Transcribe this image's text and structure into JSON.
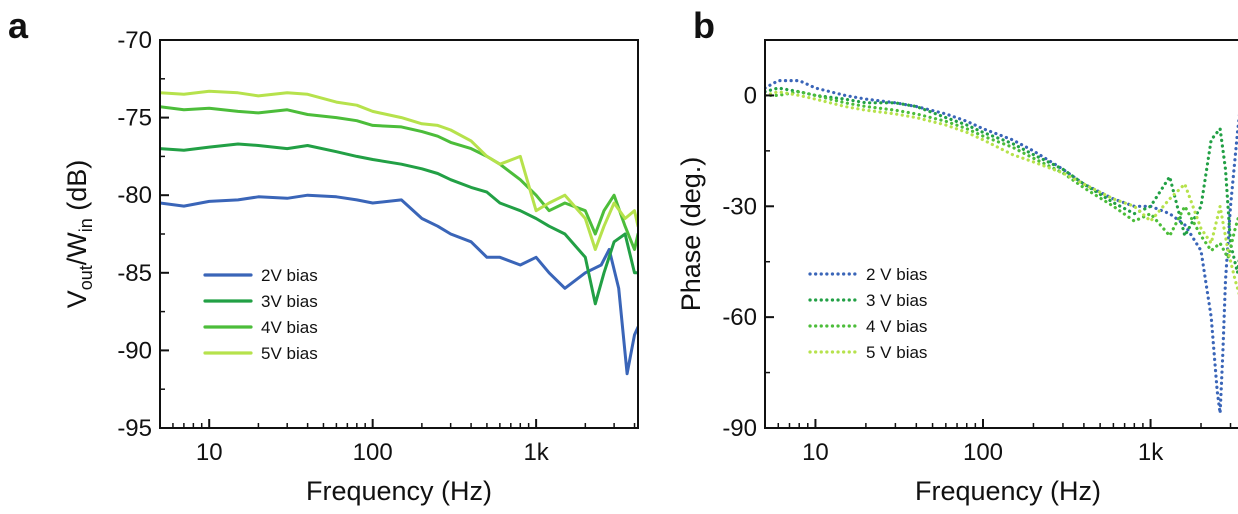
{
  "figure": {
    "panel_a_letter": "a",
    "panel_b_letter": "b"
  },
  "colors": {
    "2V": "#3a65b8",
    "3V": "#22a045",
    "4V": "#4cbd3a",
    "5V": "#b6e24c"
  },
  "chart_data": [
    {
      "panel": "a",
      "type": "line",
      "title": "",
      "xlabel": "Frequency (Hz)",
      "ylabel_main": "V",
      "ylabel_sub1": "out",
      "ylabel_mid": "/W",
      "ylabel_sub2": "in",
      "ylabel_tail": " (dB)",
      "xscale": "log",
      "xlim": [
        5,
        4200
      ],
      "ylim": [
        -95,
        -70
      ],
      "xticks": [
        10,
        100,
        1000
      ],
      "xticklabels": [
        "10",
        "100",
        "1k"
      ],
      "yticks": [
        -95,
        -90,
        -85,
        -80,
        -75,
        -70
      ],
      "yticklabels": [
        "-95",
        "-90",
        "-85",
        "-80",
        "-75",
        "-70"
      ],
      "grid": false,
      "legend_position": "lower-left",
      "line_style": "solid",
      "series": [
        {
          "name": "2V bias",
          "color": "#3a65b8",
          "x": [
            5,
            7,
            10,
            15,
            20,
            30,
            40,
            60,
            80,
            100,
            150,
            200,
            250,
            300,
            400,
            500,
            600,
            800,
            1000,
            1200,
            1500,
            2000,
            2500,
            2800,
            3200,
            3600,
            4000,
            4200
          ],
          "y": [
            -80.5,
            -80.7,
            -80.4,
            -80.3,
            -80.1,
            -80.2,
            -80.0,
            -80.1,
            -80.3,
            -80.5,
            -80.3,
            -81.5,
            -82.0,
            -82.5,
            -83.0,
            -84.0,
            -84.0,
            -84.5,
            -84.0,
            -85.0,
            -86.0,
            -85.0,
            -84.5,
            -83.5,
            -86.0,
            -91.5,
            -89.0,
            -88.5
          ]
        },
        {
          "name": "3V bias",
          "color": "#22a045",
          "x": [
            5,
            7,
            10,
            15,
            20,
            30,
            40,
            60,
            80,
            100,
            150,
            200,
            250,
            300,
            400,
            500,
            600,
            800,
            1000,
            1200,
            1500,
            2000,
            2300,
            2600,
            3000,
            3500,
            4000,
            4200
          ],
          "y": [
            -77.0,
            -77.1,
            -76.9,
            -76.7,
            -76.8,
            -77.0,
            -76.8,
            -77.2,
            -77.5,
            -77.7,
            -78.0,
            -78.3,
            -78.6,
            -79.0,
            -79.5,
            -79.8,
            -80.5,
            -81.0,
            -81.5,
            -82.0,
            -82.5,
            -84.0,
            -87.0,
            -85.0,
            -83.0,
            -82.5,
            -85.0,
            -85.0
          ]
        },
        {
          "name": "4V bias",
          "color": "#4cbd3a",
          "x": [
            5,
            7,
            10,
            15,
            20,
            30,
            40,
            60,
            80,
            100,
            150,
            200,
            250,
            300,
            400,
            500,
            600,
            800,
            1000,
            1200,
            1500,
            2000,
            2300,
            2600,
            3000,
            3500,
            4000,
            4200
          ],
          "y": [
            -74.3,
            -74.5,
            -74.4,
            -74.6,
            -74.7,
            -74.5,
            -74.8,
            -75.0,
            -75.2,
            -75.5,
            -75.6,
            -75.9,
            -76.2,
            -76.6,
            -77.0,
            -77.5,
            -78.0,
            -79.0,
            -80.0,
            -81.0,
            -80.5,
            -81.0,
            -82.5,
            -81.0,
            -80.0,
            -82.0,
            -83.5,
            -82.5
          ]
        },
        {
          "name": "5V bias",
          "color": "#b6e24c",
          "x": [
            5,
            7,
            10,
            15,
            20,
            30,
            40,
            60,
            80,
            100,
            150,
            200,
            250,
            300,
            400,
            500,
            600,
            800,
            1000,
            1200,
            1500,
            2000,
            2300,
            2600,
            3000,
            3500,
            4000,
            4200
          ],
          "y": [
            -73.4,
            -73.5,
            -73.3,
            -73.4,
            -73.6,
            -73.4,
            -73.5,
            -74.0,
            -74.2,
            -74.6,
            -75.0,
            -75.4,
            -75.5,
            -75.8,
            -76.5,
            -77.5,
            -78.0,
            -77.5,
            -81.0,
            -80.5,
            -80.0,
            -81.5,
            -83.5,
            -82.0,
            -80.5,
            -81.5,
            -81.0,
            -82.0
          ]
        }
      ],
      "legend_entries": [
        "2V bias",
        "3V bias",
        "4V bias",
        "5V bias"
      ]
    },
    {
      "panel": "b",
      "type": "line",
      "title": "",
      "xlabel": "Frequency (Hz)",
      "ylabel": "Phase (deg.)",
      "xscale": "log",
      "xlim": [
        5,
        4200
      ],
      "ylim": [
        -90,
        15
      ],
      "xticks": [
        10,
        100,
        1000
      ],
      "xticklabels": [
        "10",
        "100",
        "1k"
      ],
      "yticks": [
        -90,
        -60,
        -30,
        0
      ],
      "yticklabels": [
        "-90",
        "-60",
        "-30",
        "0"
      ],
      "grid": false,
      "legend_position": "lower-left",
      "line_style": "dotted",
      "series": [
        {
          "name": "2 V bias",
          "color": "#3a65b8",
          "x": [
            5,
            6,
            8,
            10,
            15,
            20,
            30,
            40,
            60,
            80,
            100,
            150,
            200,
            300,
            400,
            600,
            800,
            1000,
            1300,
            1600,
            2000,
            2300,
            2500,
            2600,
            2700,
            2800,
            3000,
            3300,
            3600,
            3900,
            4200
          ],
          "y": [
            2,
            4,
            4,
            2,
            0,
            -1,
            -2,
            -3,
            -5,
            -7,
            -9,
            -12,
            -15,
            -20,
            -24,
            -28,
            -30,
            -30,
            -32,
            -35,
            -42,
            -60,
            -80,
            -86,
            -70,
            -50,
            -30,
            -10,
            5,
            12,
            10
          ]
        },
        {
          "name": "3 V bias",
          "color": "#22a045",
          "x": [
            5,
            6,
            8,
            10,
            15,
            20,
            30,
            40,
            60,
            80,
            100,
            150,
            200,
            300,
            400,
            600,
            800,
            1000,
            1300,
            1600,
            2000,
            2300,
            2600,
            2800,
            3000,
            3300,
            3600,
            4000,
            4200
          ],
          "y": [
            1,
            2,
            1,
            0,
            -1,
            -2,
            -2,
            -3,
            -6,
            -8,
            -10,
            -13,
            -16,
            -20,
            -24,
            -29,
            -32,
            -30,
            -22,
            -38,
            -30,
            -12,
            -9,
            -20,
            -40,
            -48,
            -35,
            -25,
            -20
          ]
        },
        {
          "name": "4 V bias",
          "color": "#4cbd3a",
          "x": [
            5,
            6,
            8,
            10,
            15,
            20,
            30,
            40,
            60,
            80,
            100,
            150,
            200,
            300,
            400,
            600,
            800,
            1000,
            1300,
            1600,
            2000,
            2300,
            2600,
            2900,
            3200,
            3500,
            3800,
            4200
          ],
          "y": [
            0,
            0,
            1,
            0,
            -2,
            -3,
            -4,
            -5,
            -7,
            -9,
            -11,
            -14,
            -17,
            -21,
            -25,
            -30,
            -34,
            -32,
            -38,
            -30,
            -38,
            -42,
            -40,
            -44,
            -36,
            -30,
            -20,
            -14
          ]
        },
        {
          "name": "5 V bias",
          "color": "#b6e24c",
          "x": [
            5,
            6,
            8,
            10,
            15,
            20,
            30,
            40,
            60,
            80,
            100,
            150,
            200,
            300,
            400,
            600,
            800,
            1000,
            1300,
            1600,
            2000,
            2300,
            2600,
            2900,
            3200,
            3500,
            3800,
            4200
          ],
          "y": [
            0,
            1,
            0,
            -1,
            -3,
            -4,
            -5,
            -6,
            -8,
            -10,
            -12,
            -16,
            -18,
            -21,
            -24,
            -28,
            -30,
            -34,
            -28,
            -24,
            -36,
            -40,
            -30,
            -42,
            -50,
            -56,
            -52,
            -48
          ]
        }
      ],
      "legend_entries": [
        "2 V bias",
        "3 V bias",
        "4 V bias",
        "5 V bias"
      ]
    }
  ]
}
